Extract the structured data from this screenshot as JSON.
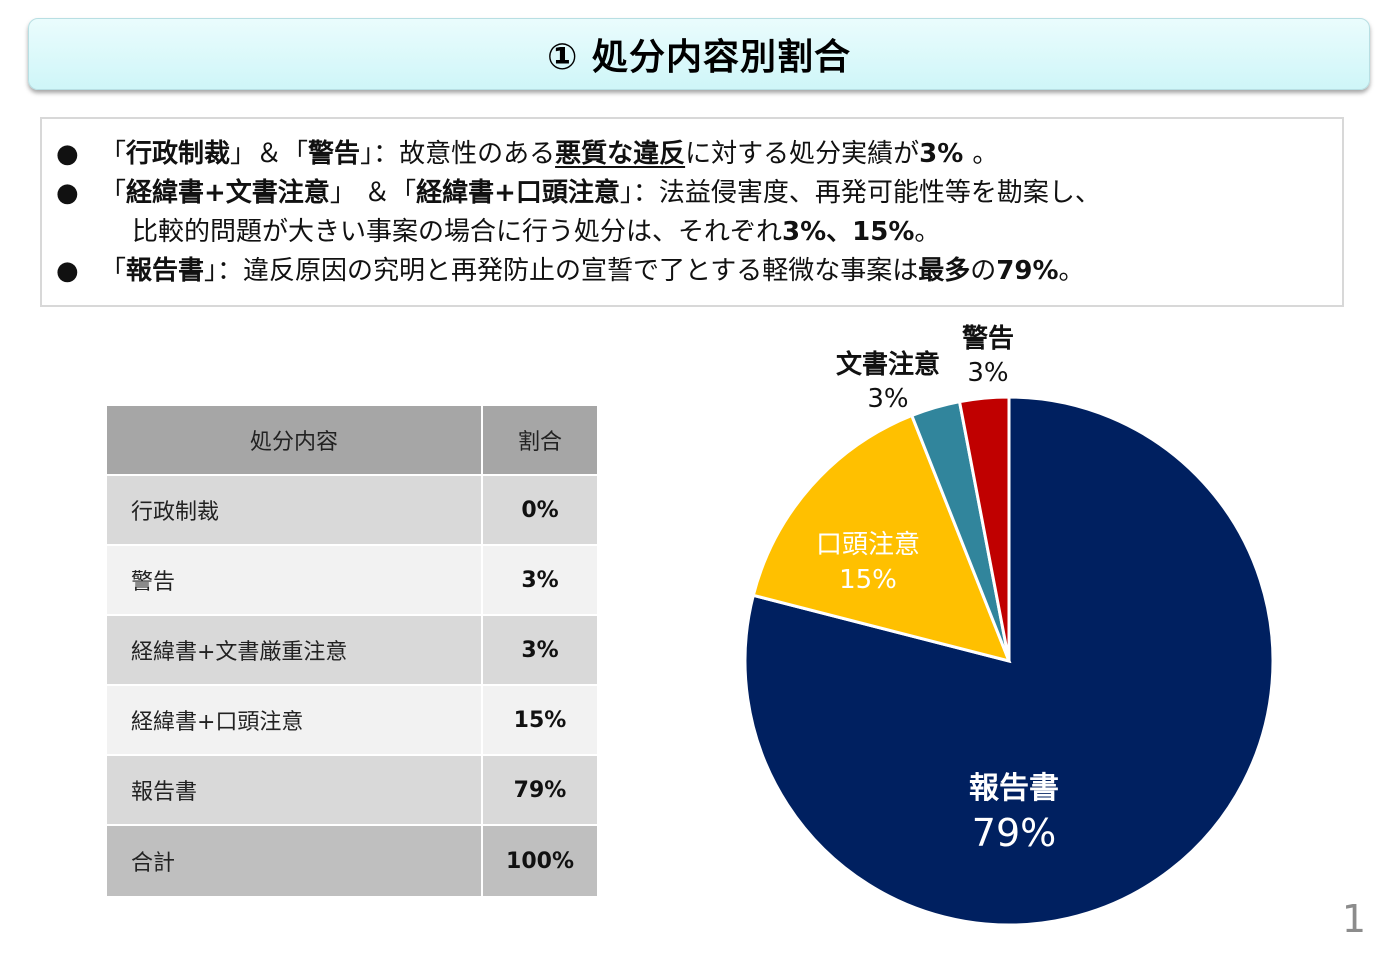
{
  "header": {
    "title": "① 処分内容別割合"
  },
  "summary": {
    "lines": [
      {
        "parts": [
          {
            "text": "「",
            "style": ""
          },
          {
            "text": "行政制裁",
            "style": "b"
          },
          {
            "text": "」＆「",
            "style": ""
          },
          {
            "text": "警告",
            "style": "b"
          },
          {
            "text": "」：故意性のある",
            "style": ""
          },
          {
            "text": "悪質な違反",
            "style": "b u"
          },
          {
            "text": "に対する処分実績が",
            "style": ""
          },
          {
            "text": "3% ",
            "style": "b"
          },
          {
            "text": "。",
            "style": ""
          }
        ]
      },
      {
        "parts": [
          {
            "text": "「",
            "style": ""
          },
          {
            "text": "経緯書+文書注意",
            "style": "b"
          },
          {
            "text": "」 ＆「",
            "style": ""
          },
          {
            "text": "経緯書+口頭注意",
            "style": "b"
          },
          {
            "text": "」：法益侵害度、再発可能性等を勘案し、",
            "style": ""
          }
        ]
      },
      {
        "parts": [
          {
            "text": "比較的問題が大きい事案の場合に行う処分は、それぞれ",
            "style": ""
          },
          {
            "text": "3%、15%",
            "style": "b"
          },
          {
            "text": "。",
            "style": ""
          }
        ]
      },
      {
        "parts": [
          {
            "text": "「",
            "style": ""
          },
          {
            "text": "報告書",
            "style": "b"
          },
          {
            "text": "」：違反原因の究明と再発防止の宣誓で了とする軽微な事案は",
            "style": ""
          },
          {
            "text": "最多",
            "style": "b"
          },
          {
            "text": "の",
            "style": ""
          },
          {
            "text": "79%",
            "style": "b"
          },
          {
            "text": "。",
            "style": ""
          }
        ]
      }
    ]
  },
  "table": {
    "headers": [
      "処分内容",
      "割合"
    ],
    "rows": [
      {
        "name": "行政制裁",
        "value": "0%"
      },
      {
        "name": "警告",
        "value": "3%"
      },
      {
        "name": "経緯書+文書厳重注意",
        "value": "3%"
      },
      {
        "name": "経緯書+口頭注意",
        "value": "15%"
      },
      {
        "name": "報告書",
        "value": "79%"
      }
    ],
    "total": {
      "name": "合計",
      "value": "100%"
    }
  },
  "chart_data": {
    "type": "pie",
    "title": "",
    "start_angle": "12 o'clock, clockwise",
    "categories": [
      "報告書",
      "口頭注意",
      "文書注意",
      "警告"
    ],
    "values": [
      79,
      15,
      3,
      3
    ],
    "labels": [
      "79%",
      "15%",
      "3%",
      "3%"
    ],
    "colors": [
      "#002060",
      "#ffc000",
      "#31859c",
      "#c00000"
    ],
    "legend": "none (data labels on/around slices)"
  },
  "chart_labels": {
    "report": {
      "name": "報告書",
      "pct": "79%"
    },
    "oral": {
      "name": "口頭注意",
      "pct": "15%"
    },
    "written": {
      "name": "文書注意",
      "pct": "3%"
    },
    "warning": {
      "name": "警告",
      "pct": "3%"
    }
  },
  "footer": {
    "page_number": "1"
  }
}
